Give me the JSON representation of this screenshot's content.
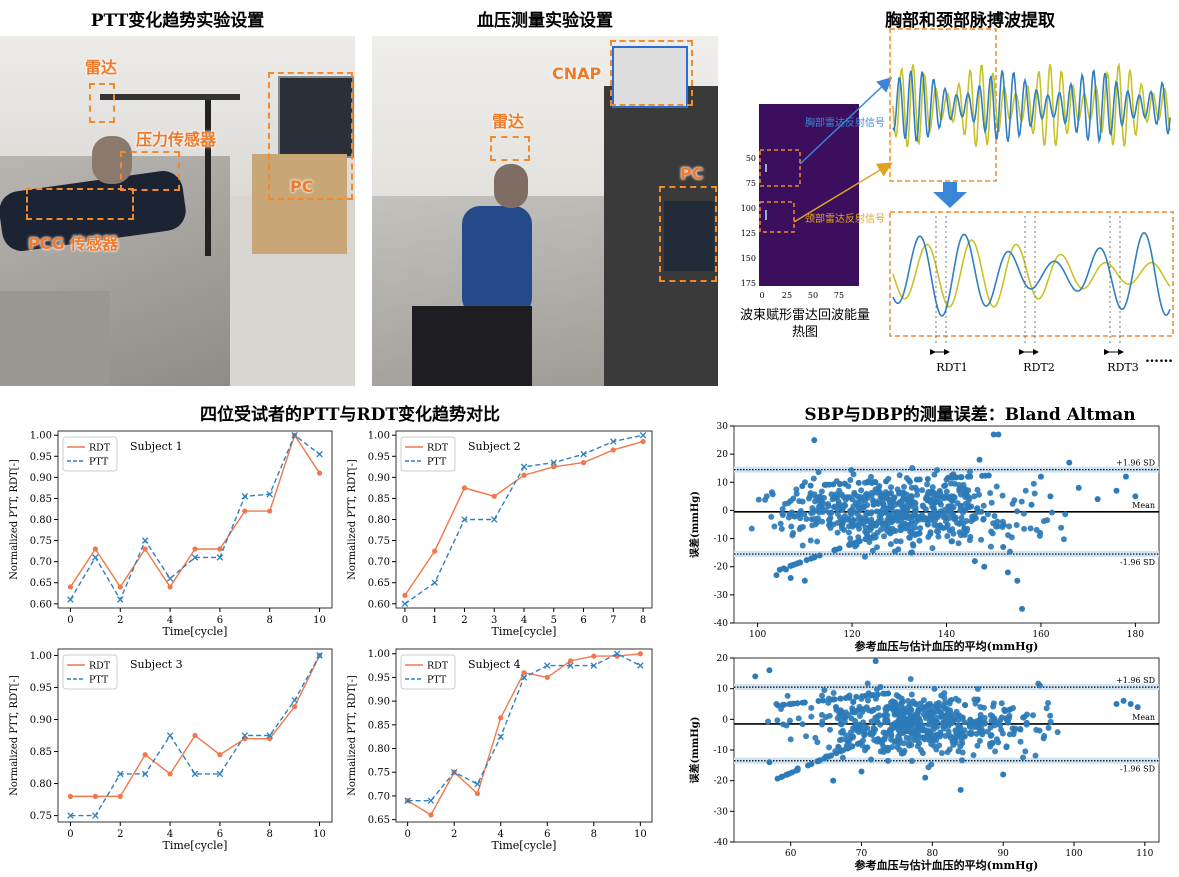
{
  "titles": {
    "ptt_setup": "PTT变化趋势实验设置",
    "bp_setup": "血压测量实验设置",
    "extraction": "胸部和颈部脉搏波提取",
    "compare": "四位受试者的PTT与RDT变化趋势对比",
    "bland": "SBP与DBP的测量误差：Bland Altman"
  },
  "photo1": {
    "radar": "雷达",
    "pressure": "压力传感器",
    "pc": "PC",
    "pcg": "PCG 传感器"
  },
  "photo2": {
    "cnap": "CNAP",
    "radar": "雷达",
    "pc": "PC"
  },
  "extraction": {
    "heatmap_caption_1": "波束赋形雷达回波能量",
    "heatmap_caption_2": "热图",
    "chest_label": "胸部雷达反射信号",
    "neck_label": "颈部雷达反射信号",
    "y_ticks": [
      "50",
      "75",
      "100",
      "125",
      "150",
      "175"
    ],
    "x_ticks": [
      "0",
      "25",
      "50",
      "75"
    ],
    "rdt_labels": [
      "RDT1",
      "RDT2",
      "RDT3"
    ],
    "ellipsis": "……",
    "colors": {
      "heatmap": "#3b0f5e",
      "wave1": "#2f7fc1",
      "wave2": "#c7c32a",
      "box": "#f08a2a",
      "arrow": "#3a86d6"
    }
  },
  "chart_data": [
    {
      "type": "line",
      "annotation": "Subject 1",
      "xlabel": "Time[cycle]",
      "ylabel": "Normalized PTT, RDT[-]",
      "xlim": [
        -0.5,
        10.5
      ],
      "ylim": [
        0.59,
        1.01
      ],
      "xticks": [
        0,
        2,
        4,
        6,
        8,
        10
      ],
      "yticks": [
        0.6,
        0.65,
        0.7,
        0.75,
        0.8,
        0.85,
        0.9,
        0.95,
        1.0
      ],
      "x": [
        0,
        1,
        2,
        3,
        4,
        5,
        6,
        7,
        8,
        9,
        10
      ],
      "series": [
        {
          "name": "RDT",
          "values": [
            0.64,
            0.73,
            0.64,
            0.73,
            0.64,
            0.73,
            0.73,
            0.82,
            0.82,
            1.0,
            0.91
          ]
        },
        {
          "name": "PTT",
          "values": [
            0.61,
            0.71,
            0.61,
            0.75,
            0.66,
            0.71,
            0.71,
            0.855,
            0.86,
            1.0,
            0.955
          ]
        }
      ]
    },
    {
      "type": "line",
      "annotation": "Subject 2",
      "xlabel": "Time[cycle]",
      "ylabel": "Normalized PTT, RDT[-]",
      "xlim": [
        -0.3,
        8.3
      ],
      "ylim": [
        0.59,
        1.01
      ],
      "xticks": [
        0,
        1,
        2,
        3,
        4,
        5,
        6,
        7,
        8
      ],
      "yticks": [
        0.6,
        0.65,
        0.7,
        0.75,
        0.8,
        0.85,
        0.9,
        0.95,
        1.0
      ],
      "x": [
        0,
        1,
        2,
        3,
        4,
        5,
        6,
        7,
        8
      ],
      "series": [
        {
          "name": "RDT",
          "values": [
            0.62,
            0.725,
            0.875,
            0.855,
            0.905,
            0.925,
            0.935,
            0.965,
            0.985
          ]
        },
        {
          "name": "PTT",
          "values": [
            0.6,
            0.65,
            0.8,
            0.8,
            0.925,
            0.935,
            0.955,
            0.985,
            1.0
          ]
        }
      ]
    },
    {
      "type": "line",
      "annotation": "Subject 3",
      "xlabel": "Time[cycle]",
      "ylabel": "Normalized PTT, RDT[-]",
      "xlim": [
        -0.5,
        10.5
      ],
      "ylim": [
        0.74,
        1.01
      ],
      "xticks": [
        0,
        2,
        4,
        6,
        8,
        10
      ],
      "yticks": [
        0.75,
        0.8,
        0.85,
        0.9,
        0.95,
        1.0
      ],
      "x": [
        0,
        1,
        2,
        3,
        4,
        5,
        6,
        7,
        8,
        9,
        10
      ],
      "series": [
        {
          "name": "RDT",
          "values": [
            0.78,
            0.78,
            0.78,
            0.845,
            0.815,
            0.875,
            0.845,
            0.87,
            0.87,
            0.92,
            1.0
          ]
        },
        {
          "name": "PTT",
          "values": [
            0.75,
            0.75,
            0.815,
            0.815,
            0.875,
            0.815,
            0.815,
            0.875,
            0.875,
            0.93,
            1.0
          ]
        }
      ]
    },
    {
      "type": "line",
      "annotation": "Subject 4",
      "xlabel": "Time[cycle]",
      "ylabel": "Normalized PTT, RDT[-]",
      "xlim": [
        -0.5,
        10.5
      ],
      "ylim": [
        0.645,
        1.01
      ],
      "xticks": [
        0,
        2,
        4,
        6,
        8,
        10
      ],
      "yticks": [
        0.65,
        0.7,
        0.75,
        0.8,
        0.85,
        0.9,
        0.95,
        1.0
      ],
      "x": [
        0,
        1,
        2,
        3,
        4,
        5,
        6,
        7,
        8,
        9,
        10
      ],
      "series": [
        {
          "name": "RDT",
          "values": [
            0.69,
            0.66,
            0.75,
            0.705,
            0.865,
            0.96,
            0.95,
            0.985,
            0.995,
            0.995,
            1.0
          ]
        },
        {
          "name": "PTT",
          "values": [
            0.69,
            0.69,
            0.75,
            0.725,
            0.825,
            0.95,
            0.975,
            0.975,
            0.975,
            1.0,
            0.975
          ]
        }
      ]
    },
    {
      "type": "scatter",
      "xlabel": "参考血压与估计血压的平均(mmHg)",
      "ylabel": "误差(mmHg)",
      "xlim": [
        95,
        185
      ],
      "ylim": [
        -40,
        30
      ],
      "xticks": [
        100,
        120,
        140,
        160,
        180
      ],
      "yticks": [
        -40,
        -30,
        -20,
        -10,
        0,
        10,
        20,
        30
      ],
      "mean": -0.5,
      "upper": 14.5,
      "lower": -15.5,
      "labels": {
        "upper": "+1.96 SD",
        "mean": "Mean",
        "lower": "-1.96 SD"
      },
      "cloud": {
        "center_x": 130,
        "spread_x": 12,
        "spread_y": 6,
        "count": 620
      },
      "points": [
        [
          112,
          25
        ],
        [
          150,
          27
        ],
        [
          151,
          27
        ],
        [
          156,
          -35
        ],
        [
          148,
          -20
        ],
        [
          155,
          -25
        ],
        [
          176,
          7
        ],
        [
          178,
          12
        ],
        [
          180,
          5
        ],
        [
          166,
          17
        ],
        [
          104,
          -23
        ],
        [
          106,
          -21
        ],
        [
          107,
          -24
        ],
        [
          110,
          -25
        ],
        [
          160,
          12
        ],
        [
          162,
          5
        ],
        [
          158,
          2
        ],
        [
          146,
          -18
        ],
        [
          152,
          -13
        ],
        [
          147,
          18
        ],
        [
          153,
          -22
        ],
        [
          168,
          8
        ],
        [
          172,
          4
        ]
      ],
      "band": {
        "upper_min": 108,
        "upper_max": 150,
        "lower_min": 104,
        "lower_max": 124
      }
    },
    {
      "type": "scatter",
      "xlabel": "参考血压与估计血压的平均(mmHg)",
      "ylabel": "误差(mmHg)",
      "xlim": [
        52,
        112
      ],
      "ylim": [
        -40,
        20
      ],
      "xticks": [
        60,
        70,
        80,
        90,
        100,
        110
      ],
      "yticks": [
        -40,
        -30,
        -20,
        -10,
        0,
        10,
        20
      ],
      "mean": -1.5,
      "upper": 10.5,
      "lower": -13.5,
      "labels": {
        "upper": "+1.96 SD",
        "mean": "Mean",
        "lower": "-1.96 SD"
      },
      "cloud": {
        "center_x": 78,
        "spread_x": 8,
        "spread_y": 5,
        "count": 600
      },
      "points": [
        [
          55,
          14
        ],
        [
          57,
          16
        ],
        [
          72,
          19
        ],
        [
          84,
          -23
        ],
        [
          66,
          -20
        ],
        [
          70,
          -17
        ],
        [
          107,
          6
        ],
        [
          108,
          5
        ],
        [
          109,
          4
        ],
        [
          106,
          5
        ],
        [
          57,
          -14
        ],
        [
          61,
          -16
        ],
        [
          90,
          -18
        ],
        [
          79,
          -19
        ]
      ],
      "band": {
        "upper_min": 58,
        "upper_max": 74,
        "lower_min": 58,
        "lower_max": 70
      }
    }
  ],
  "colors": {
    "rdt": "#f2774a",
    "ptt": "#2f80c0",
    "scatter": "#2d7bb8",
    "sd_band": "#cfe3f3"
  }
}
